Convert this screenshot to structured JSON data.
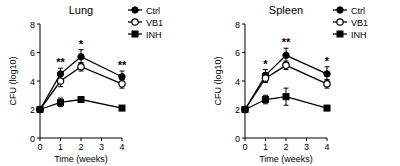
{
  "chart_data": [
    {
      "type": "line",
      "title": "Lung",
      "x_label": "Time (weeks)",
      "y_label": "CFU (log10)",
      "x": [
        0,
        1,
        2,
        4
      ],
      "xlim": [
        0,
        4
      ],
      "xticks": [
        0,
        1,
        2,
        3,
        4
      ],
      "ylim": [
        0,
        8
      ],
      "yticks": [
        0,
        2,
        4,
        6,
        8
      ],
      "legend": "upper right",
      "series": [
        {
          "name": "Ctrl",
          "color": "#000000",
          "marker": "filled-circle",
          "values": [
            2,
            4.5,
            5.7,
            4.3
          ],
          "errors": [
            0,
            0.4,
            0.5,
            0.4
          ]
        },
        {
          "name": "VB1",
          "color": "#000000",
          "marker": "open-circle",
          "values": [
            2,
            4.0,
            5.0,
            3.8
          ],
          "errors": [
            0,
            0.4,
            0.3,
            0.3
          ]
        },
        {
          "name": "INH",
          "color": "#000000",
          "marker": "filled-square",
          "values": [
            2,
            2.5,
            2.7,
            2.1
          ],
          "errors": [
            0,
            0.3,
            0.1,
            0.1
          ]
        }
      ],
      "annotations": [
        {
          "x": 1,
          "text": "**"
        },
        {
          "x": 2,
          "text": "*"
        },
        {
          "x": 4,
          "text": "**"
        }
      ]
    },
    {
      "type": "line",
      "title": "Spleen",
      "x_label": "Time (weeks)",
      "y_label": "CFU (log10)",
      "x": [
        0,
        1,
        2,
        4
      ],
      "xlim": [
        0,
        4
      ],
      "xticks": [
        0,
        1,
        2,
        3,
        4
      ],
      "ylim": [
        0,
        8
      ],
      "yticks": [
        0,
        2,
        4,
        6,
        8
      ],
      "legend": "upper right",
      "series": [
        {
          "name": "Ctrl",
          "color": "#000000",
          "marker": "filled-circle",
          "values": [
            2,
            4.4,
            5.8,
            4.5
          ],
          "errors": [
            0,
            0.4,
            0.5,
            0.5
          ]
        },
        {
          "name": "VB1",
          "color": "#000000",
          "marker": "open-circle",
          "values": [
            2,
            4.2,
            5.1,
            3.8
          ],
          "errors": [
            0,
            0.3,
            0.3,
            0.3
          ]
        },
        {
          "name": "INH",
          "color": "#000000",
          "marker": "filled-square",
          "values": [
            2,
            2.7,
            2.9,
            2.1
          ],
          "errors": [
            0,
            0.3,
            0.6,
            0.1
          ]
        }
      ],
      "annotations": [
        {
          "x": 1,
          "text": "*"
        },
        {
          "x": 2,
          "text": "**"
        },
        {
          "x": 4,
          "text": "*"
        }
      ]
    }
  ]
}
